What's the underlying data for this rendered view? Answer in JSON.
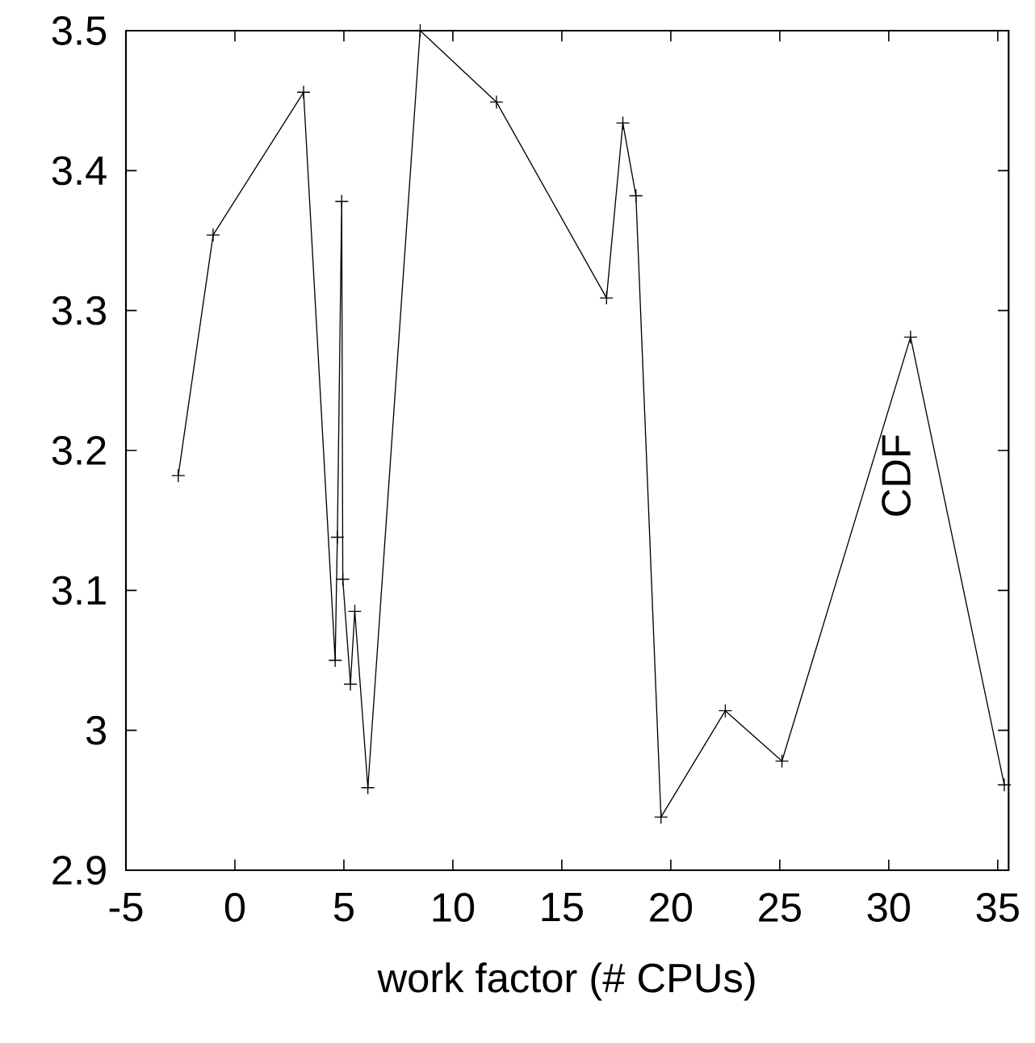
{
  "chart_data": {
    "type": "line",
    "xlabel": "work factor (# CPUs)",
    "ylabel": "CDF",
    "x": [
      -2.6,
      -1.0,
      3.15,
      4.6,
      4.7,
      4.9,
      4.95,
      5.3,
      5.5,
      6.1,
      8.5,
      12.0,
      17.05,
      17.8,
      18.4,
      19.55,
      22.5,
      25.1,
      31.0,
      35.3
    ],
    "series": [
      {
        "color": "#000000",
        "values": [
          3.182,
          3.354,
          3.456,
          3.05,
          3.138,
          3.378,
          3.108,
          3.033,
          3.085,
          2.959,
          3.5,
          3.449,
          3.309,
          3.434,
          3.382,
          2.938,
          3.014,
          2.978,
          3.281,
          2.961
        ]
      }
    ],
    "xlim": [
      -5,
      35.5
    ],
    "ylim": [
      2.9,
      3.5
    ],
    "xticks": [
      -5,
      0,
      5,
      10,
      15,
      20,
      25,
      30,
      35
    ],
    "yticks": [
      2.9,
      3,
      3.1,
      3.2,
      3.3,
      3.4,
      3.5
    ],
    "marker": "cross",
    "line_style": "solid"
  }
}
